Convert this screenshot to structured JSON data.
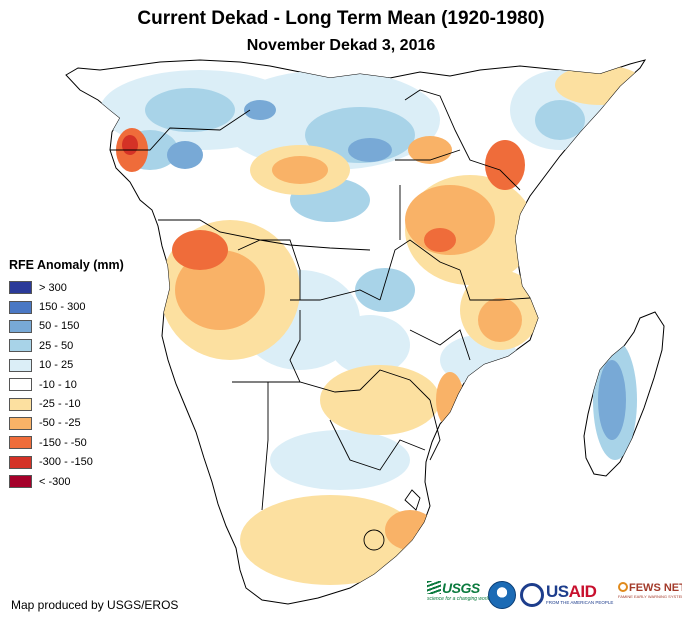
{
  "header": {
    "title": "Current Dekad - Long Term Mean (1920-1980)",
    "subtitle": "November Dekad 3, 2016"
  },
  "legend": {
    "title": "RFE Anomaly (mm)",
    "items": [
      {
        "label": "> 300",
        "color": "#2b3a99"
      },
      {
        "label": "150 - 300",
        "color": "#4a78c4"
      },
      {
        "label": "50 - 150",
        "color": "#78a9d6"
      },
      {
        "label": "25 - 50",
        "color": "#a8d3e8"
      },
      {
        "label": "10 - 25",
        "color": "#dbeef7"
      },
      {
        "label": "-10 - 10",
        "color": "#ffffff"
      },
      {
        "label": "-25 - -10",
        "color": "#fce0a0"
      },
      {
        "label": "-50 - -25",
        "color": "#f9b267"
      },
      {
        "label": "-150 - -50",
        "color": "#ef6c3a"
      },
      {
        "label": "-300 - -150",
        "color": "#d43226"
      },
      {
        "label": "< -300",
        "color": "#a5002a"
      }
    ]
  },
  "footer": {
    "credit": "Map produced by USGS/EROS"
  },
  "logos": {
    "usgs": {
      "name": "USGS",
      "tagline": "science for a changing world"
    },
    "noaa": {
      "name": "NOAA"
    },
    "usaid": {
      "name_us": "US",
      "name_aid": "AID",
      "tagline": "FROM THE AMERICAN PEOPLE"
    },
    "fews": {
      "name": "FEWS NET",
      "tagline": "FAMINE EARLY WARNING SYSTEMS NETWORK"
    }
  }
}
